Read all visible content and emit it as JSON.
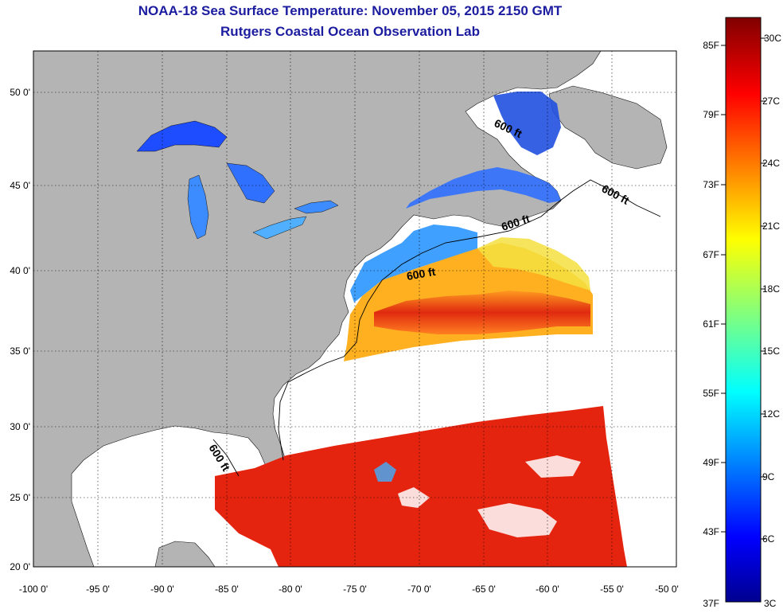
{
  "header": {
    "title": "NOAA-18 Sea Surface Temperature:  November 05, 2015 2150 GMT",
    "subtitle": "Rutgers Coastal Ocean Observation Lab"
  },
  "map": {
    "lon_ticks": [
      "-100 0'",
      "-95 0'",
      "-90 0'",
      "-85 0'",
      "-80 0'",
      "-75 0'",
      "-70 0'",
      "-65 0'",
      "-60 0'",
      "-55 0'",
      "-50 0'"
    ],
    "lat_ticks": [
      "50 0'",
      "45 0'",
      "40 0'",
      "35 0'",
      "30 0'",
      "25 0'",
      "20 0'"
    ],
    "contour_labels": [
      "600 ft",
      "600 ft",
      "600 ft",
      "600 ft",
      "600 ft"
    ],
    "colors": {
      "land": "#b4b4b4",
      "no_data": "#ffffff",
      "grid": "#000000"
    }
  },
  "colorbar": {
    "f_labels": [
      "85F",
      "79F",
      "73F",
      "67F",
      "61F",
      "55F",
      "49F",
      "43F",
      "37F"
    ],
    "c_labels": [
      "30C",
      "27C",
      "24C",
      "21C",
      "18C",
      "15C",
      "12C",
      "9C",
      "6C",
      "3C"
    ]
  }
}
